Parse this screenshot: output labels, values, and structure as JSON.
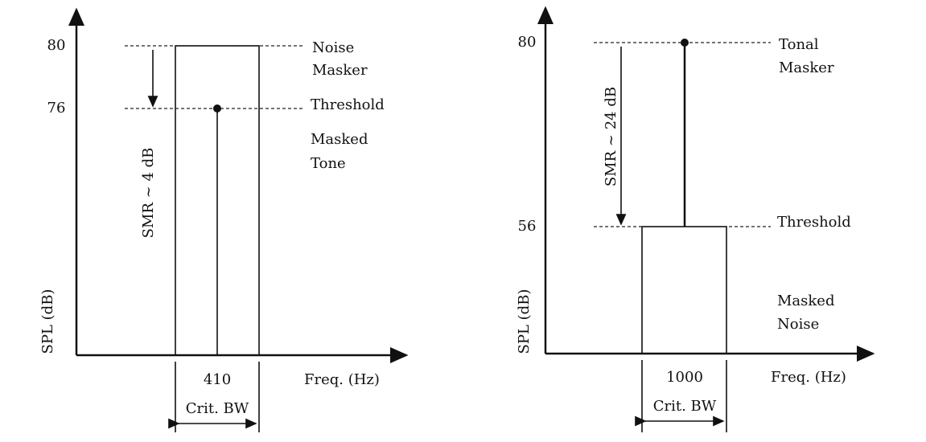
{
  "panels": [
    {
      "y_ticks": [
        "80",
        "76"
      ],
      "y_label": "SPL (dB)",
      "x_label": "Freq. (Hz)",
      "x_tick": "410",
      "bandwidth_label": "Crit. BW",
      "smr_label": "SMR ~ 4 dB",
      "annotations": {
        "masker": [
          "Noise",
          "Masker"
        ],
        "threshold": "Threshold",
        "masked": [
          "Masked",
          "Tone"
        ]
      }
    },
    {
      "y_ticks": [
        "80",
        "56"
      ],
      "y_label": "SPL (dB)",
      "x_label": "Freq. (Hz)",
      "x_tick": "1000",
      "bandwidth_label": "Crit. BW",
      "smr_label": "SMR ~ 24 dB",
      "annotations": {
        "masker": [
          "Tonal",
          "Masker"
        ],
        "threshold": "Threshold",
        "masked": [
          "Masked",
          "Noise"
        ]
      }
    }
  ]
}
